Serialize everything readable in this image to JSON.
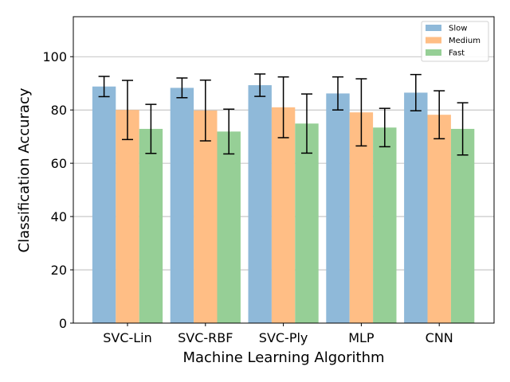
{
  "chart_data": {
    "type": "bar",
    "title": "",
    "xlabel": "Machine Learning Algorithm",
    "ylabel": "Classification Accuracy",
    "ylim": [
      0,
      115
    ],
    "yticks": [
      0,
      20,
      40,
      60,
      80,
      100
    ],
    "grid": "y",
    "legend_position": "top-right",
    "categories": [
      "SVC-Lin",
      "SVC-RBF",
      "SVC-Ply",
      "MLP",
      "CNN"
    ],
    "series": [
      {
        "name": "Slow",
        "color": "#8fb9d9",
        "values": [
          88.8,
          88.3,
          89.3,
          86.2,
          86.5
        ],
        "errors": [
          3.8,
          3.7,
          4.2,
          6.2,
          6.8
        ]
      },
      {
        "name": "Medium",
        "color": "#ffbe85",
        "values": [
          80.0,
          79.8,
          81.0,
          79.1,
          78.2
        ],
        "errors": [
          11.1,
          11.4,
          11.4,
          12.6,
          9.0
        ]
      },
      {
        "name": "Fast",
        "color": "#96cf96",
        "values": [
          72.9,
          71.9,
          74.9,
          73.4,
          72.9
        ],
        "errors": [
          9.2,
          8.4,
          11.1,
          7.2,
          9.8
        ]
      }
    ]
  }
}
